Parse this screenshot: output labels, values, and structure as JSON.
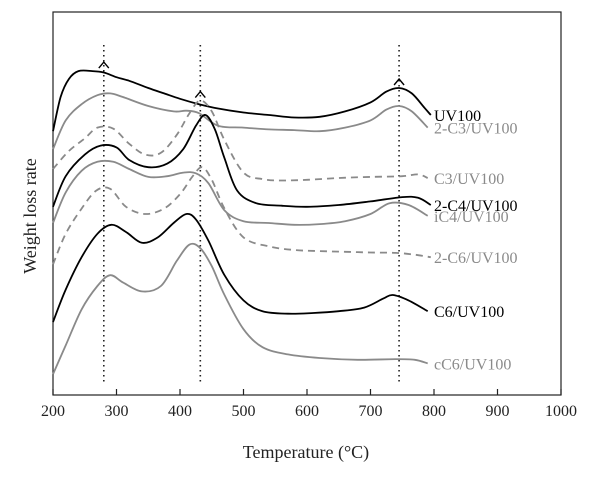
{
  "chart_data": {
    "type": "line",
    "title": "",
    "xlabel": "Temperature (°C)",
    "ylabel": "Weight loss rate",
    "xlim": [
      200,
      1000
    ],
    "ylim": [
      0,
      10
    ],
    "x_ticks": [
      "200",
      "300",
      "400",
      "500",
      "600",
      "700",
      "800",
      "900",
      "1000"
    ],
    "y_ticks": [],
    "grid": false,
    "legend": "inline labels at right end of curves",
    "reference_lines": [
      {
        "x": 280,
        "marker": "caret"
      },
      {
        "x": 432,
        "marker": "caret"
      },
      {
        "x": 745,
        "marker": "caret"
      }
    ],
    "colors": {
      "black": "#000000",
      "gray": "#8a8a8a"
    },
    "series": [
      {
        "name": "UV100",
        "color": "#000000",
        "dash": false,
        "points": [
          [
            200,
            7.05
          ],
          [
            212,
            8.0
          ],
          [
            225,
            8.5
          ],
          [
            240,
            8.72
          ],
          [
            262,
            8.72
          ],
          [
            280,
            8.68
          ],
          [
            300,
            8.55
          ],
          [
            320,
            8.45
          ],
          [
            350,
            8.25
          ],
          [
            375,
            8.1
          ],
          [
            400,
            7.95
          ],
          [
            430,
            7.8
          ],
          [
            460,
            7.68
          ],
          [
            500,
            7.57
          ],
          [
            540,
            7.5
          ],
          [
            580,
            7.43
          ],
          [
            620,
            7.45
          ],
          [
            660,
            7.6
          ],
          [
            700,
            7.85
          ],
          [
            725,
            8.15
          ],
          [
            745,
            8.25
          ],
          [
            765,
            8.1
          ],
          [
            785,
            7.7
          ],
          [
            795,
            7.5
          ]
        ]
      },
      {
        "name": "2-C3/UV100",
        "color": "#8a8a8a",
        "dash": false,
        "points": [
          [
            200,
            6.55
          ],
          [
            220,
            7.35
          ],
          [
            245,
            7.8
          ],
          [
            270,
            8.05
          ],
          [
            290,
            8.1
          ],
          [
            310,
            8.0
          ],
          [
            350,
            7.75
          ],
          [
            390,
            7.6
          ],
          [
            410,
            7.62
          ],
          [
            430,
            7.55
          ],
          [
            460,
            7.2
          ],
          [
            500,
            7.15
          ],
          [
            540,
            7.1
          ],
          [
            580,
            7.08
          ],
          [
            620,
            7.05
          ],
          [
            660,
            7.15
          ],
          [
            700,
            7.35
          ],
          [
            725,
            7.65
          ],
          [
            745,
            7.75
          ],
          [
            765,
            7.6
          ],
          [
            790,
            7.15
          ]
        ]
      },
      {
        "name": "C3/UV100",
        "color": "#8a8a8a",
        "dash": true,
        "points": [
          [
            200,
            6.0
          ],
          [
            225,
            6.5
          ],
          [
            250,
            6.85
          ],
          [
            270,
            7.15
          ],
          [
            295,
            7.12
          ],
          [
            320,
            6.7
          ],
          [
            345,
            6.4
          ],
          [
            370,
            6.45
          ],
          [
            395,
            6.95
          ],
          [
            415,
            7.55
          ],
          [
            432,
            7.9
          ],
          [
            450,
            7.6
          ],
          [
            470,
            6.8
          ],
          [
            500,
            5.9
          ],
          [
            530,
            5.72
          ],
          [
            560,
            5.68
          ],
          [
            600,
            5.7
          ],
          [
            650,
            5.75
          ],
          [
            700,
            5.78
          ],
          [
            750,
            5.8
          ],
          [
            775,
            5.85
          ],
          [
            790,
            5.75
          ]
        ]
      },
      {
        "name": "2-C4/UV100",
        "color": "#000000",
        "dash": false,
        "points": [
          [
            200,
            4.95
          ],
          [
            220,
            5.8
          ],
          [
            250,
            6.4
          ],
          [
            275,
            6.65
          ],
          [
            300,
            6.6
          ],
          [
            320,
            6.25
          ],
          [
            350,
            6.05
          ],
          [
            380,
            6.15
          ],
          [
            405,
            6.55
          ],
          [
            425,
            7.2
          ],
          [
            440,
            7.5
          ],
          [
            455,
            7.1
          ],
          [
            470,
            6.3
          ],
          [
            490,
            5.4
          ],
          [
            520,
            5.05
          ],
          [
            560,
            4.98
          ],
          [
            600,
            4.95
          ],
          [
            650,
            5.0
          ],
          [
            700,
            5.1
          ],
          [
            750,
            5.22
          ],
          [
            775,
            5.2
          ],
          [
            795,
            5.0
          ]
        ]
      },
      {
        "name": "iC4/UV100",
        "color": "#8a8a8a",
        "dash": false,
        "points": [
          [
            200,
            4.5
          ],
          [
            220,
            5.35
          ],
          [
            245,
            5.95
          ],
          [
            270,
            6.2
          ],
          [
            295,
            6.2
          ],
          [
            320,
            6.0
          ],
          [
            350,
            5.78
          ],
          [
            380,
            5.8
          ],
          [
            405,
            5.9
          ],
          [
            425,
            5.88
          ],
          [
            445,
            5.6
          ],
          [
            470,
            4.85
          ],
          [
            500,
            4.55
          ],
          [
            540,
            4.5
          ],
          [
            580,
            4.45
          ],
          [
            620,
            4.47
          ],
          [
            660,
            4.55
          ],
          [
            700,
            4.75
          ],
          [
            730,
            5.05
          ],
          [
            760,
            5.0
          ],
          [
            790,
            4.7
          ]
        ]
      },
      {
        "name": "2-C6/UV100",
        "color": "#8a8a8a",
        "dash": true,
        "points": [
          [
            200,
            3.35
          ],
          [
            220,
            4.2
          ],
          [
            245,
            4.9
          ],
          [
            268,
            5.4
          ],
          [
            290,
            5.45
          ],
          [
            315,
            4.95
          ],
          [
            345,
            4.75
          ],
          [
            375,
            4.9
          ],
          [
            400,
            5.3
          ],
          [
            420,
            5.8
          ],
          [
            435,
            6.05
          ],
          [
            450,
            5.7
          ],
          [
            470,
            4.9
          ],
          [
            500,
            4.1
          ],
          [
            540,
            3.85
          ],
          [
            580,
            3.75
          ],
          [
            620,
            3.72
          ],
          [
            660,
            3.7
          ],
          [
            700,
            3.68
          ],
          [
            740,
            3.67
          ],
          [
            770,
            3.62
          ],
          [
            795,
            3.55
          ]
        ]
      },
      {
        "name": "C6/UV100",
        "color": "#000000",
        "dash": false,
        "points": [
          [
            200,
            1.75
          ],
          [
            220,
            2.65
          ],
          [
            245,
            3.55
          ],
          [
            270,
            4.2
          ],
          [
            292,
            4.45
          ],
          [
            315,
            4.25
          ],
          [
            340,
            3.95
          ],
          [
            365,
            4.1
          ],
          [
            390,
            4.5
          ],
          [
            410,
            4.75
          ],
          [
            425,
            4.6
          ],
          [
            445,
            4.0
          ],
          [
            470,
            3.05
          ],
          [
            500,
            2.35
          ],
          [
            530,
            2.05
          ],
          [
            570,
            1.98
          ],
          [
            610,
            2.0
          ],
          [
            650,
            2.05
          ],
          [
            690,
            2.15
          ],
          [
            720,
            2.4
          ],
          [
            735,
            2.5
          ],
          [
            760,
            2.35
          ],
          [
            790,
            2.05
          ]
        ]
      },
      {
        "name": "cC6/UV100",
        "color": "#8a8a8a",
        "dash": false,
        "points": [
          [
            200,
            0.3
          ],
          [
            220,
            1.1
          ],
          [
            245,
            2.1
          ],
          [
            270,
            2.75
          ],
          [
            290,
            3.05
          ],
          [
            310,
            2.85
          ],
          [
            340,
            2.6
          ],
          [
            370,
            2.75
          ],
          [
            395,
            3.45
          ],
          [
            415,
            3.9
          ],
          [
            432,
            3.8
          ],
          [
            450,
            3.3
          ],
          [
            470,
            2.5
          ],
          [
            500,
            1.55
          ],
          [
            530,
            1.05
          ],
          [
            570,
            0.85
          ],
          [
            620,
            0.75
          ],
          [
            680,
            0.7
          ],
          [
            740,
            0.72
          ],
          [
            770,
            0.7
          ],
          [
            790,
            0.6
          ]
        ]
      }
    ]
  }
}
